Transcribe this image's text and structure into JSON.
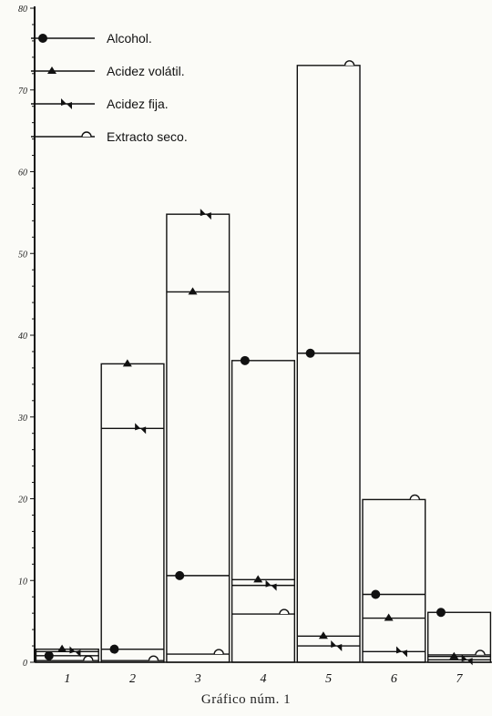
{
  "caption": "Gráfico núm. 1",
  "colors": {
    "ink": "#111111",
    "background": "#fbfbf7"
  },
  "chart_data": {
    "type": "bar",
    "title": "",
    "xlabel": "",
    "ylabel": "",
    "categories": [
      "1",
      "2",
      "3",
      "4",
      "5",
      "6",
      "7"
    ],
    "y_tick_labels": [
      "0",
      "10",
      "20",
      "30",
      "40",
      "50",
      "60",
      "70",
      "80"
    ],
    "ylim": [
      0,
      80
    ],
    "grid": false,
    "legend_position": "top-left",
    "series": [
      {
        "name": "Alcohol.",
        "marker": "filled-circle",
        "values": [
          0.8,
          1.6,
          10.6,
          36.9,
          37.8,
          8.3,
          6.1
        ]
      },
      {
        "name": "Acidez volátil.",
        "marker": "filled-triangle",
        "values": [
          1.6,
          36.5,
          45.3,
          10.1,
          3.2,
          5.4,
          0.7
        ]
      },
      {
        "name": "Acidez fija.",
        "marker": "half-bowtie",
        "values": [
          1.3,
          28.6,
          54.8,
          9.4,
          2.0,
          1.3,
          0.3
        ]
      },
      {
        "name": "Extracto seco.",
        "marker": "half-circle",
        "values": [
          0.2,
          0.2,
          1.0,
          5.9,
          73.0,
          19.9,
          0.9
        ]
      }
    ]
  }
}
